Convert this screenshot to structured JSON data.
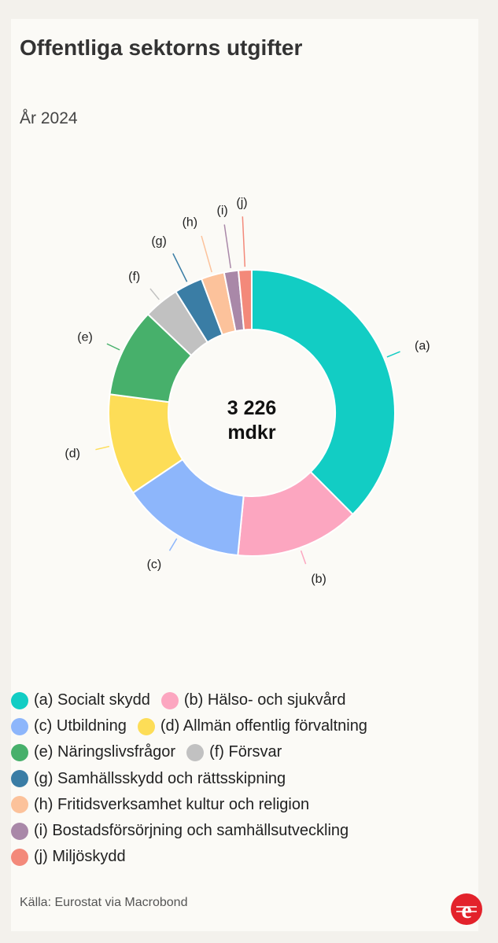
{
  "header": {
    "title": "Offentliga sektorns utgifter",
    "subtitle": "År 2024"
  },
  "chart_data": {
    "type": "pie",
    "donut": true,
    "center_label_line1": "3 226",
    "center_label_line2": "mdkr",
    "categories": [
      "(a)",
      "(b)",
      "(c)",
      "(d)",
      "(e)",
      "(f)",
      "(g)",
      "(h)",
      "(i)",
      "(j)"
    ],
    "series": [
      {
        "labels": [
          "(a) Socialt skydd",
          "(b) Hälso- och sjukvård",
          "(c) Utbildning",
          "(d) Allmän offentlig förvaltning",
          "(e) Näringslivsfrågor",
          "(f) Försvar",
          "(g) Samhällsskydd och rättsskipning",
          "(h) Fritidsverksamhet kultur och religion",
          "(i) Bostadsförsörjning och samhällsutveckling",
          "(j) Miljöskydd"
        ],
        "values": [
          1210,
          452,
          452,
          371,
          323,
          129,
          103,
          84,
          52,
          48
        ]
      }
    ],
    "colors": [
      "#12cdc4",
      "#fca6c0",
      "#8db6fb",
      "#fddd57",
      "#47b06b",
      "#c1c1c1",
      "#3a7da5",
      "#fcc29b",
      "#a988a8",
      "#f3897a"
    ],
    "legend_position": "bottom"
  },
  "source": {
    "key": "Källa:",
    "value": "Eurostat via Macrobond"
  },
  "logo": {
    "icon": "e-logo-icon",
    "color": "#e3222b"
  }
}
